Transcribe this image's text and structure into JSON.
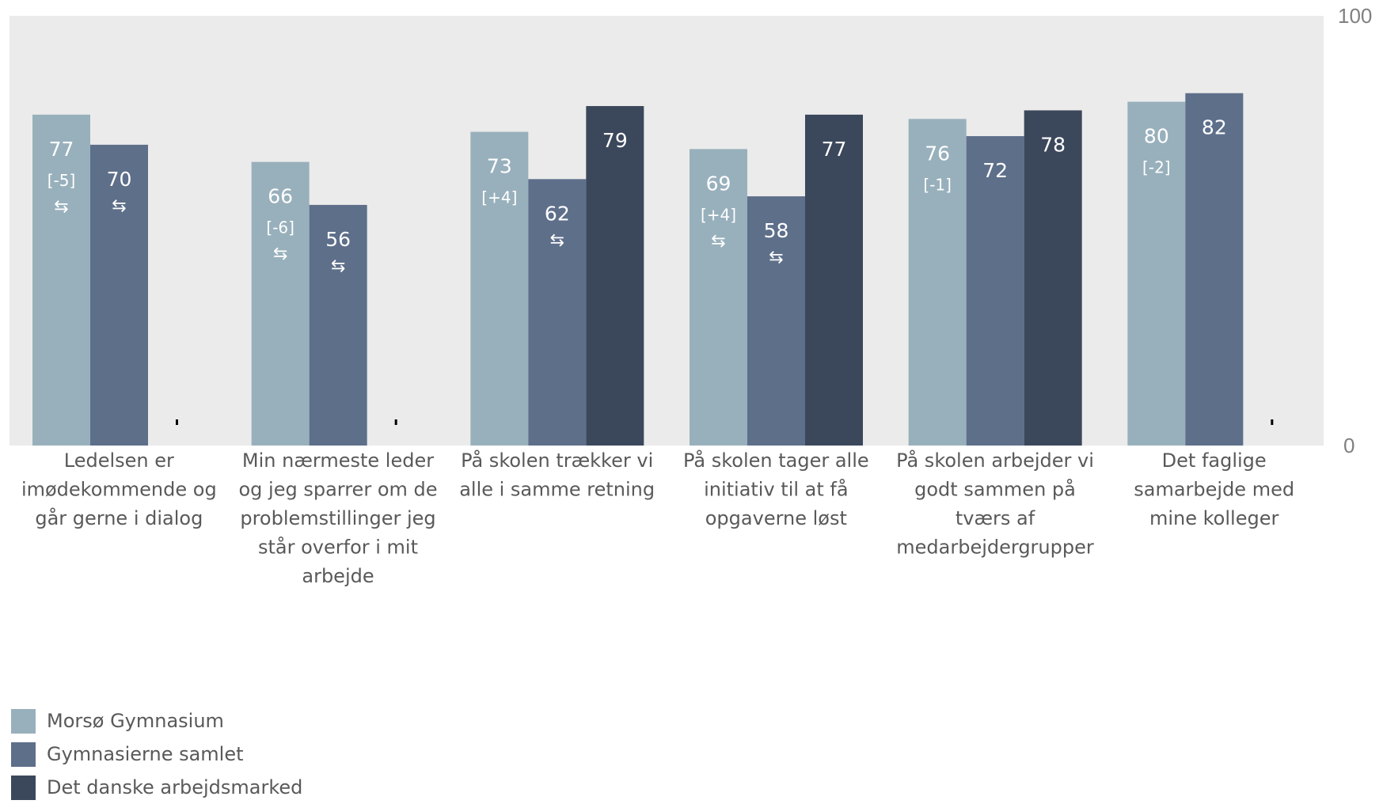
{
  "chart_data": {
    "type": "bar",
    "categories": [
      [
        "Ledelsen er",
        "imødekommende og",
        "går gerne i dialog"
      ],
      [
        "Min nærmeste leder",
        "og jeg sparrer om de",
        "problemstillinger jeg",
        "står overfor i mit",
        "arbejde"
      ],
      [
        "På skolen trækker vi",
        "alle i samme retning"
      ],
      [
        "På skolen tager alle",
        "initiativ til at få",
        "opgaverne løst"
      ],
      [
        "På skolen arbejder vi",
        "godt sammen på",
        "tværs af",
        "medarbejdergrupper"
      ],
      [
        "Det faglige",
        "samarbejde med",
        "mine kolleger"
      ]
    ],
    "series": [
      {
        "name": "Morsø Gymnasium",
        "color": "#98b0bc",
        "values": [
          77,
          66,
          73,
          69,
          76,
          80
        ],
        "deltas": [
          "[-5]",
          "[-6]",
          "[+4]",
          "[+4]",
          "[-1]",
          "[-2]"
        ],
        "arrows": [
          true,
          true,
          false,
          true,
          false,
          false
        ]
      },
      {
        "name": "Gymnasierne samlet",
        "color": "#5e6f8a",
        "values": [
          70,
          56,
          62,
          58,
          72,
          82
        ],
        "deltas": [
          null,
          null,
          null,
          null,
          null,
          null
        ],
        "arrows": [
          true,
          true,
          true,
          true,
          false,
          false
        ]
      },
      {
        "name": "Det danske arbejdsmarked",
        "color": "#3b475b",
        "values": [
          null,
          null,
          79,
          77,
          78,
          null
        ],
        "deltas": [
          null,
          null,
          null,
          null,
          null,
          null
        ],
        "arrows": [
          false,
          false,
          false,
          false,
          false,
          false
        ]
      }
    ],
    "ylim": [
      0,
      100
    ],
    "yticks": [
      "100",
      "0"
    ],
    "plot_background": "#ebebeb",
    "legend_position": "bottom-left",
    "arrow_glyph": "⇆",
    "grid": false
  }
}
